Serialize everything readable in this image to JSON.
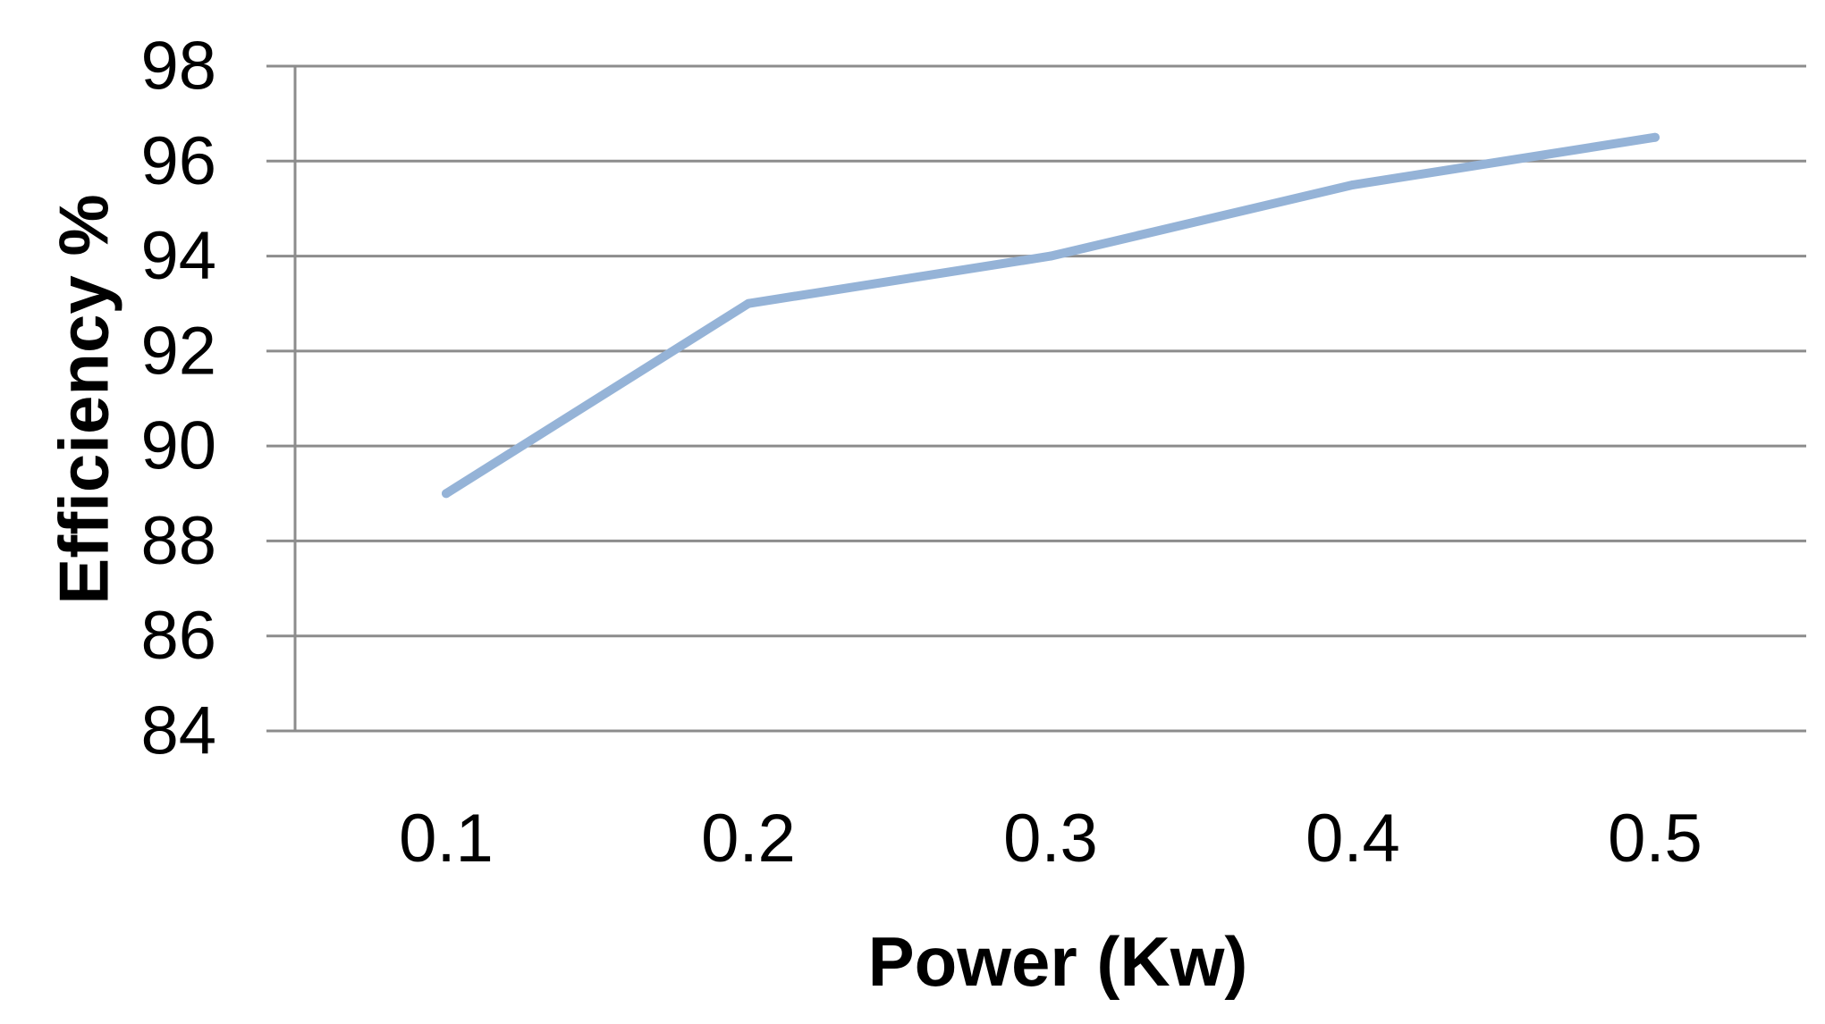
{
  "chart_data": {
    "type": "line",
    "title": "",
    "xlabel": "Power (Kw)",
    "ylabel": "Efficiency %",
    "categories": [
      "0.1",
      "0.2",
      "0.3",
      "0.4",
      "0.5"
    ],
    "series": [
      {
        "values": [
          89,
          93,
          94,
          95.5,
          96.5
        ],
        "color": "#95b3d7"
      }
    ],
    "ylim": [
      84,
      98
    ],
    "yticks": [
      84,
      86,
      88,
      90,
      92,
      94,
      96,
      98
    ],
    "grid": true,
    "legend": "none",
    "axis_color": "#8c8c8c"
  }
}
